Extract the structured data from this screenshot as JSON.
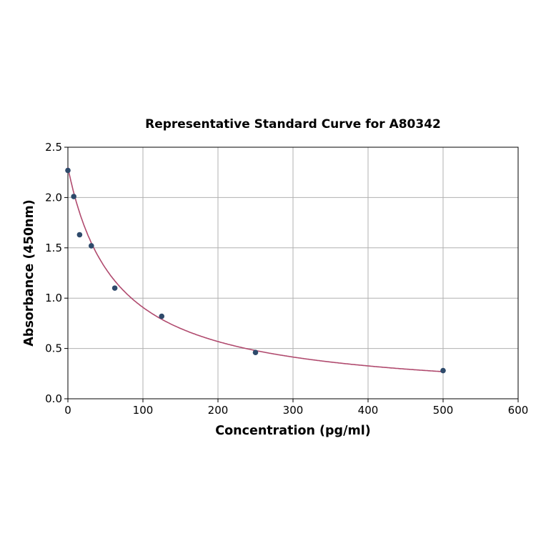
{
  "chart_data": {
    "type": "scatter",
    "title": "Representative Standard Curve for A80342",
    "xlabel": "Concentration (pg/ml)",
    "ylabel": "Absorbance (450nm)",
    "xlim": [
      0,
      600
    ],
    "ylim": [
      0,
      2.5
    ],
    "xticks": [
      "0",
      "100",
      "200",
      "300",
      "400",
      "500",
      "600"
    ],
    "yticks": [
      "0.0",
      "0.5",
      "1.0",
      "1.5",
      "2.0",
      "2.5"
    ],
    "grid": true,
    "x": [
      0,
      7.8,
      15.6,
      31.25,
      62.5,
      125,
      250,
      500
    ],
    "y": [
      2.27,
      2.01,
      1.63,
      1.52,
      1.1,
      0.82,
      0.46,
      0.28
    ],
    "point_color": "#2e4a6b",
    "curve_color": "#b04a6e",
    "fit": "fitted curve"
  }
}
